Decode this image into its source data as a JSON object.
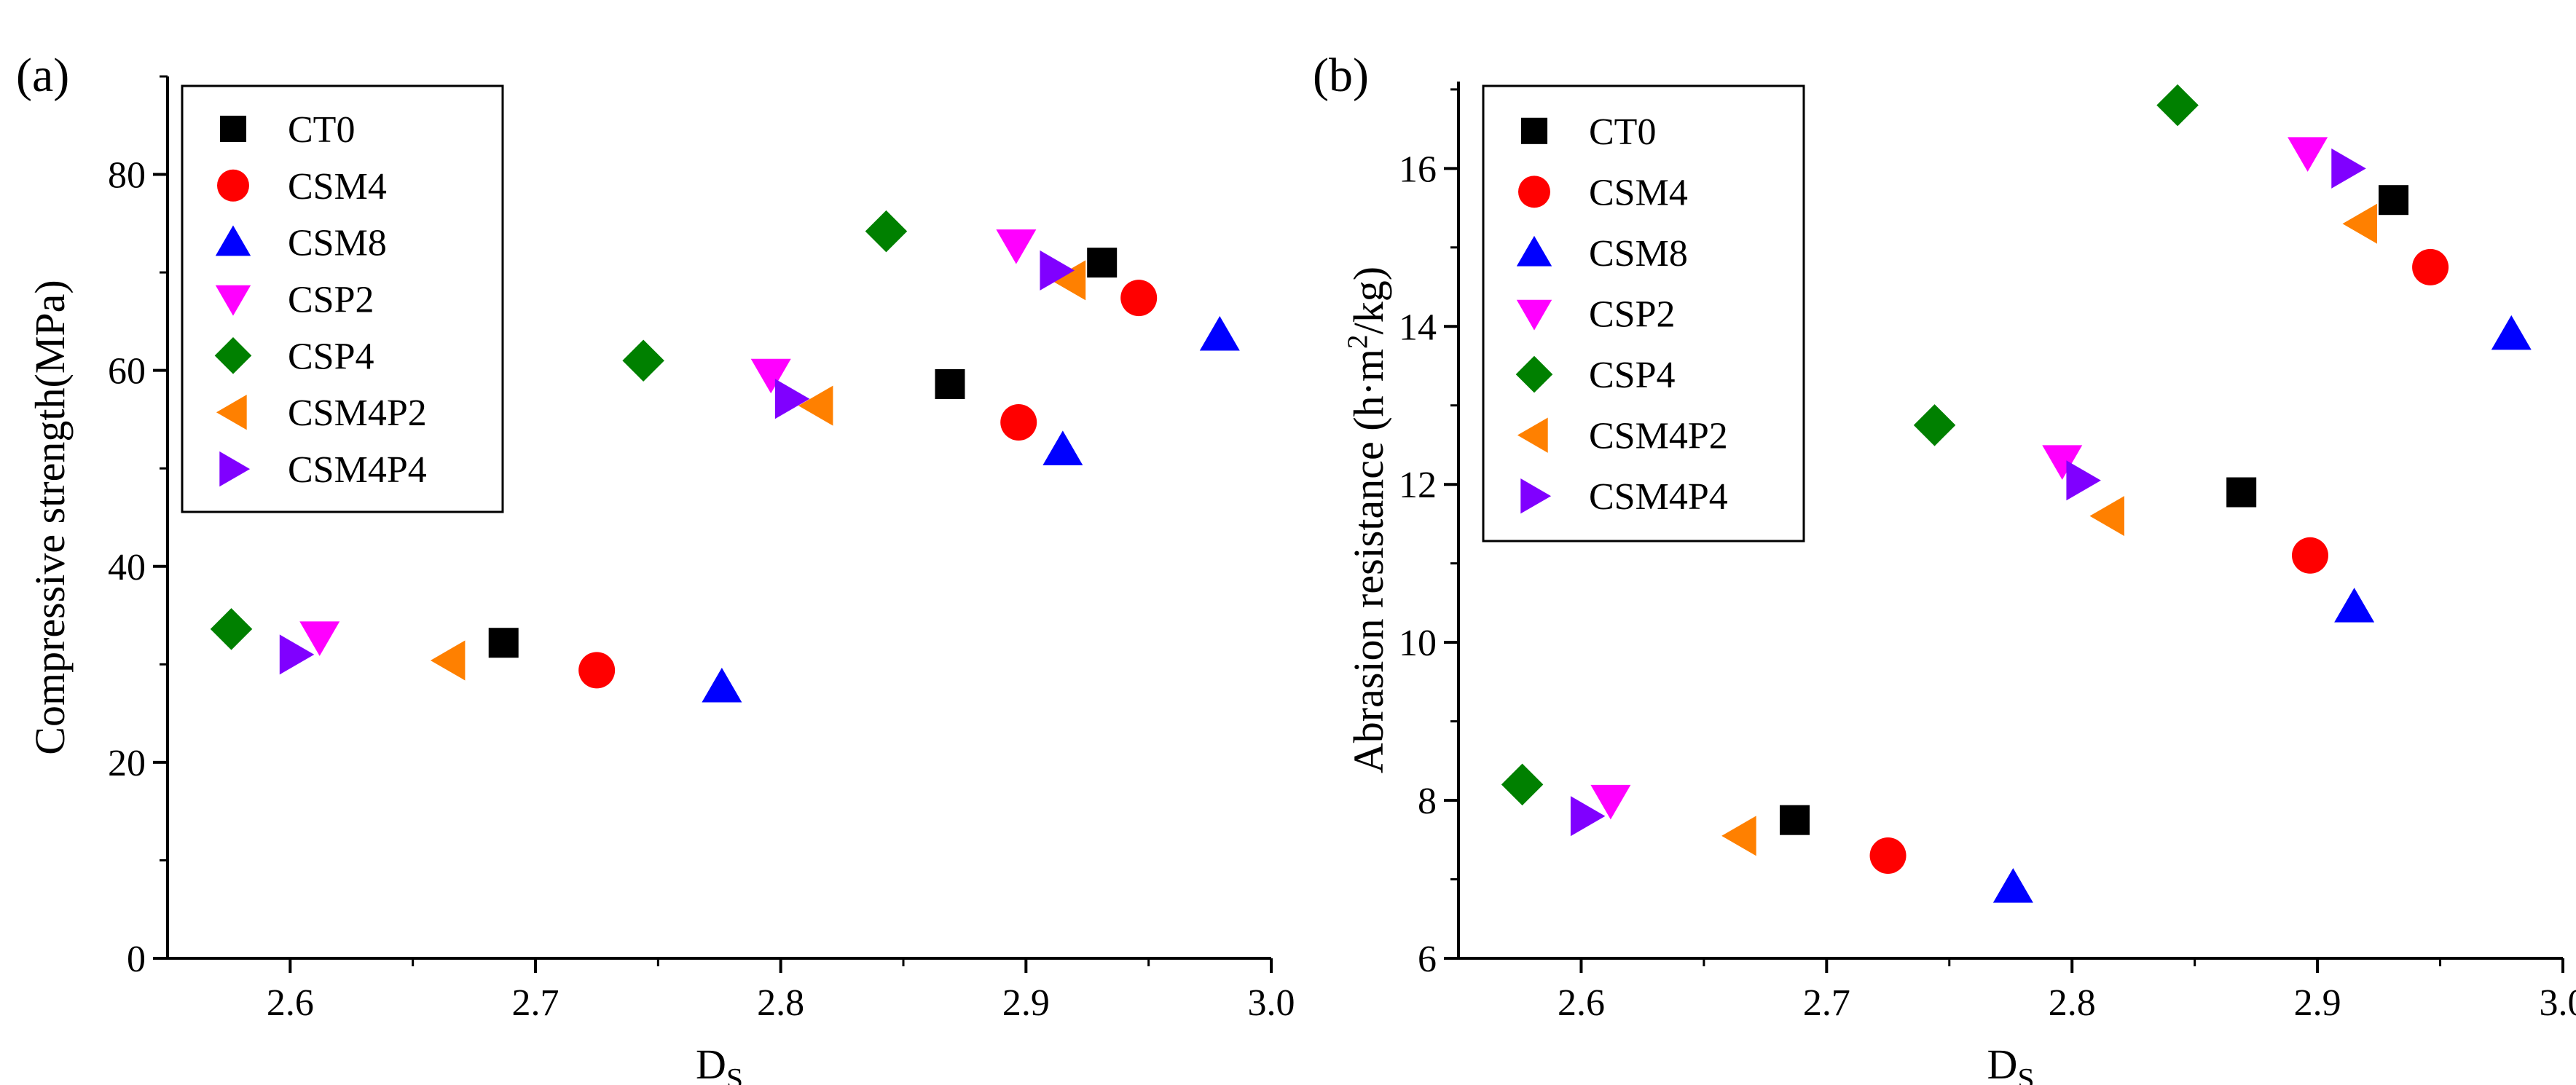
{
  "chart_data": [
    {
      "type": "scatter",
      "panel_label": "(a)",
      "xlabel_main": "D",
      "xlabel_sub": "S",
      "ylabel": "Compressive strength(MPa)",
      "xlim": [
        2.55,
        3.0
      ],
      "ylim": [
        0,
        90
      ],
      "xticks": [
        "2.6",
        "2.7",
        "2.8",
        "2.9",
        "3.0"
      ],
      "yticks": [
        "0",
        "20",
        "40",
        "60",
        "80"
      ],
      "xtick_values": [
        2.6,
        2.7,
        2.8,
        2.9,
        3.0
      ],
      "ytick_values": [
        0,
        20,
        40,
        60,
        80
      ],
      "legend_position": "top-left",
      "grid": false,
      "series": [
        {
          "name": "CT0",
          "marker": "square",
          "color": "#000000",
          "points": [
            [
              2.687,
              32.2
            ],
            [
              2.869,
              58.6
            ],
            [
              2.931,
              71.0
            ]
          ]
        },
        {
          "name": "CSM4",
          "marker": "circle",
          "color": "#ff0000",
          "points": [
            [
              2.725,
              29.4
            ],
            [
              2.897,
              54.7
            ],
            [
              2.946,
              67.4
            ]
          ]
        },
        {
          "name": "CSM8",
          "marker": "triangle-up",
          "color": "#0000ff",
          "points": [
            [
              2.776,
              27.7
            ],
            [
              2.915,
              51.9
            ],
            [
              2.979,
              63.6
            ]
          ]
        },
        {
          "name": "CSP2",
          "marker": "triangle-down",
          "color": "#ff00ff",
          "points": [
            [
              2.612,
              32.8
            ],
            [
              2.796,
              59.6
            ],
            [
              2.896,
              72.8
            ]
          ]
        },
        {
          "name": "CSP4",
          "marker": "diamond",
          "color": "#008000",
          "points": [
            [
              2.576,
              33.6
            ],
            [
              2.744,
              61.0
            ],
            [
              2.843,
              74.2
            ]
          ]
        },
        {
          "name": "CSM4P2",
          "marker": "triangle-left",
          "color": "#ff8000",
          "points": [
            [
              2.665,
              30.4
            ],
            [
              2.815,
              56.4
            ],
            [
              2.918,
              69.2
            ]
          ]
        },
        {
          "name": "CSM4P4",
          "marker": "triangle-right",
          "color": "#8000ff",
          "points": [
            [
              2.602,
              31.0
            ],
            [
              2.804,
              57.1
            ],
            [
              2.912,
              70.2
            ]
          ]
        }
      ]
    },
    {
      "type": "scatter",
      "panel_label": "(b)",
      "xlabel_main": "D",
      "xlabel_sub": "S",
      "ylabel_main": "Abrasion resistance (h·m",
      "ylabel_sup": "2",
      "ylabel_tail": "/kg)",
      "xlim": [
        2.55,
        3.0
      ],
      "ylim": [
        6,
        17.1
      ],
      "xticks": [
        "2.6",
        "2.7",
        "2.8",
        "2.9",
        "3.0"
      ],
      "yticks": [
        "6",
        "8",
        "10",
        "12",
        "14",
        "16"
      ],
      "xtick_values": [
        2.6,
        2.7,
        2.8,
        2.9,
        3.0
      ],
      "ytick_values": [
        6,
        8,
        10,
        12,
        14,
        16
      ],
      "legend_position": "top-left",
      "grid": false,
      "series": [
        {
          "name": "CT0",
          "marker": "square",
          "color": "#000000",
          "points": [
            [
              2.687,
              7.75
            ],
            [
              2.869,
              11.9
            ],
            [
              2.931,
              15.6
            ]
          ]
        },
        {
          "name": "CSM4",
          "marker": "circle",
          "color": "#ff0000",
          "points": [
            [
              2.725,
              7.3
            ],
            [
              2.897,
              11.1
            ],
            [
              2.946,
              14.75
            ]
          ]
        },
        {
          "name": "CSM8",
          "marker": "triangle-up",
          "color": "#0000ff",
          "points": [
            [
              2.776,
              6.9
            ],
            [
              2.915,
              10.45
            ],
            [
              2.979,
              13.9
            ]
          ]
        },
        {
          "name": "CSP2",
          "marker": "triangle-down",
          "color": "#ff00ff",
          "points": [
            [
              2.612,
              8.0
            ],
            [
              2.796,
              12.3
            ],
            [
              2.896,
              16.2
            ]
          ]
        },
        {
          "name": "CSP4",
          "marker": "diamond",
          "color": "#008000",
          "points": [
            [
              2.576,
              8.2
            ],
            [
              2.744,
              12.75
            ],
            [
              2.843,
              16.8
            ]
          ]
        },
        {
          "name": "CSM4P2",
          "marker": "triangle-left",
          "color": "#ff8000",
          "points": [
            [
              2.665,
              7.55
            ],
            [
              2.815,
              11.6
            ],
            [
              2.918,
              15.3
            ]
          ]
        },
        {
          "name": "CSM4P4",
          "marker": "triangle-right",
          "color": "#8000ff",
          "points": [
            [
              2.602,
              7.8
            ],
            [
              2.804,
              12.05
            ],
            [
              2.912,
              16.0
            ]
          ]
        }
      ]
    }
  ]
}
